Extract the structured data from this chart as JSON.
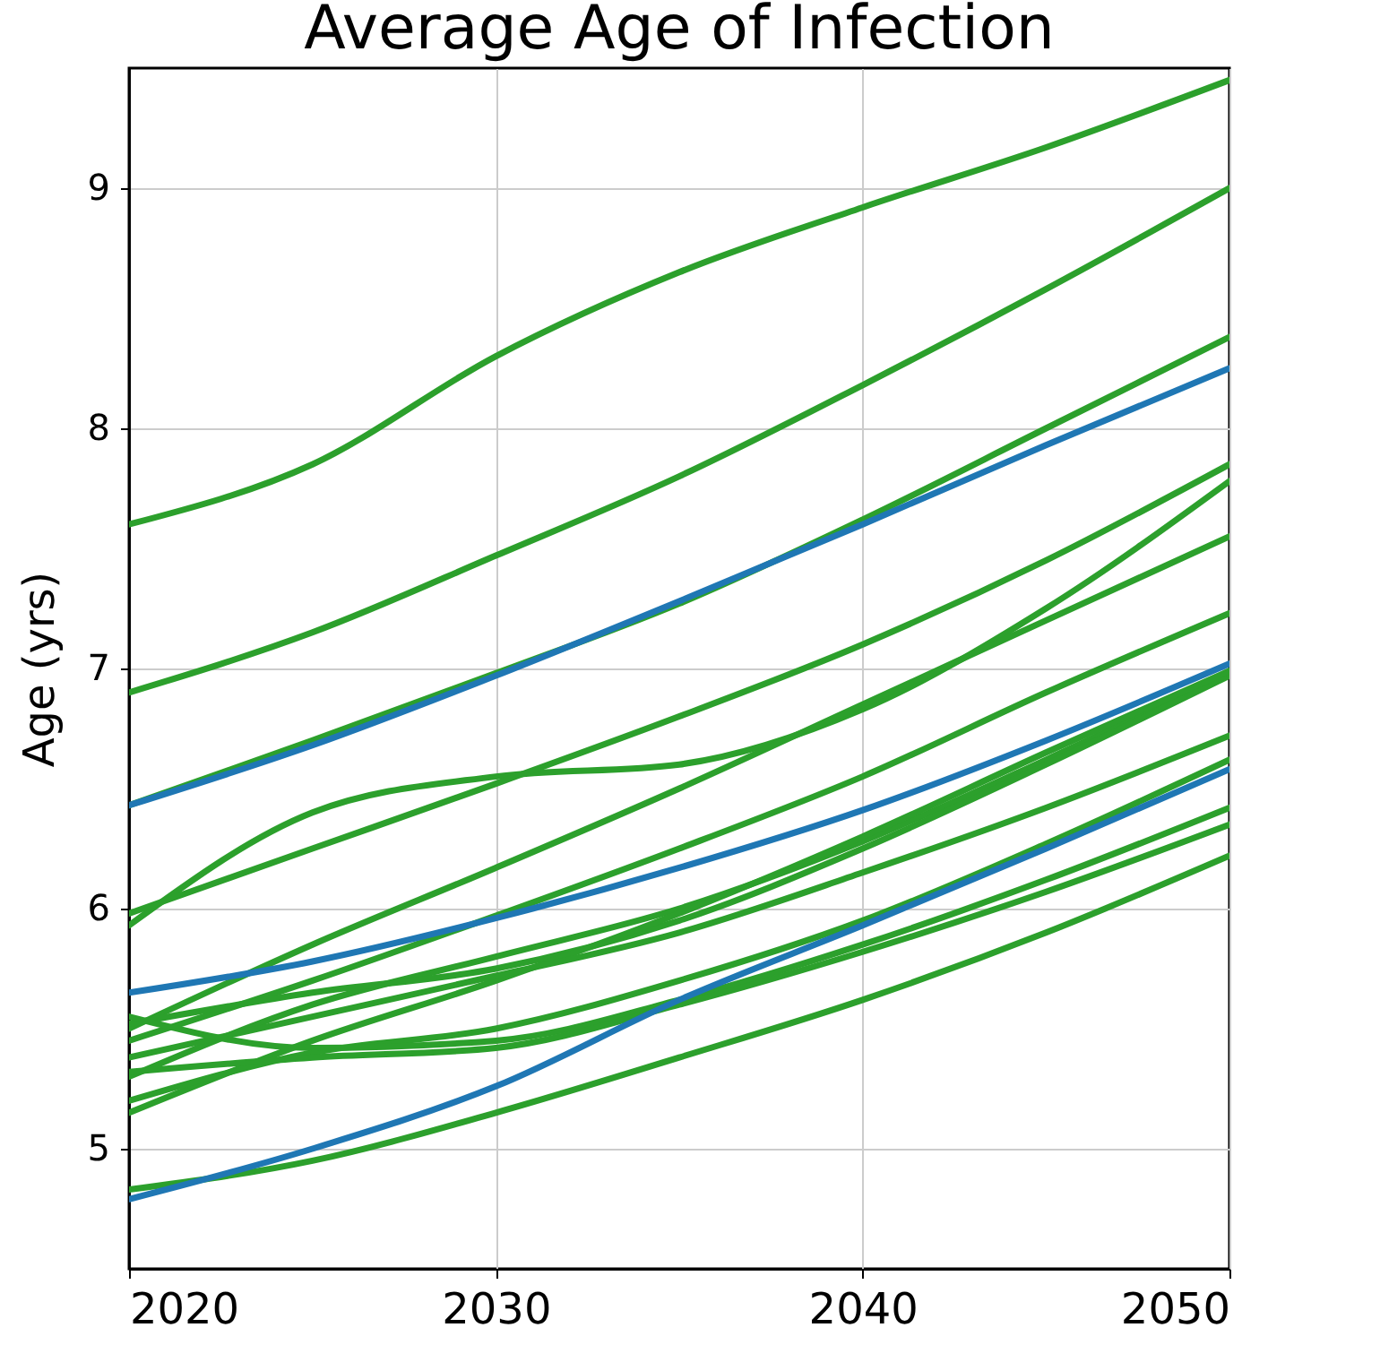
{
  "chart_data": {
    "type": "line",
    "title": "Average Age of Infection",
    "ylabel": "Age (yrs)",
    "x": [
      2020,
      2025,
      2030,
      2035,
      2040,
      2045,
      2050
    ],
    "xlim": [
      2020,
      2050
    ],
    "xticks": [
      2020,
      2030,
      2040,
      2050
    ],
    "ylim": [
      4.5,
      9.5
    ],
    "yticks": [
      5,
      6,
      7,
      8,
      9
    ],
    "grid": true,
    "line_style": "solid",
    "series": [
      {
        "color": "#2ca02c",
        "values": [
          7.6,
          7.85,
          8.3,
          8.65,
          8.92,
          9.17,
          9.45
        ]
      },
      {
        "color": "#2ca02c",
        "values": [
          6.9,
          7.15,
          7.47,
          7.8,
          8.18,
          8.58,
          9.0
        ]
      },
      {
        "color": "#2ca02c",
        "values": [
          6.43,
          6.7,
          6.98,
          7.27,
          7.62,
          8.0,
          8.38
        ]
      },
      {
        "color": "#2ca02c",
        "values": [
          5.93,
          6.4,
          6.55,
          6.6,
          6.83,
          7.25,
          7.78
        ]
      },
      {
        "color": "#2ca02c",
        "values": [
          5.98,
          6.25,
          6.52,
          6.8,
          7.1,
          7.45,
          7.85
        ]
      },
      {
        "color": "#2ca02c",
        "values": [
          5.5,
          5.85,
          6.17,
          6.5,
          6.85,
          7.2,
          7.55
        ]
      },
      {
        "color": "#2ca02c",
        "values": [
          5.45,
          5.7,
          5.97,
          6.25,
          6.55,
          6.9,
          7.23
        ]
      },
      {
        "color": "#2ca02c",
        "values": [
          5.3,
          5.6,
          5.8,
          6.0,
          6.28,
          6.62,
          6.98
        ]
      },
      {
        "color": "#2ca02c",
        "values": [
          5.52,
          5.65,
          5.75,
          5.95,
          6.25,
          6.6,
          6.97
        ]
      },
      {
        "color": "#2ca02c",
        "values": [
          5.15,
          5.45,
          5.7,
          5.98,
          6.3,
          6.65,
          6.99
        ]
      },
      {
        "color": "#2ca02c",
        "values": [
          5.38,
          5.55,
          5.72,
          5.9,
          6.15,
          6.42,
          6.72
        ]
      },
      {
        "color": "#2ca02c",
        "values": [
          5.2,
          5.4,
          5.5,
          5.7,
          5.95,
          6.27,
          6.62
        ]
      },
      {
        "color": "#2ca02c",
        "values": [
          5.55,
          5.42,
          5.45,
          5.62,
          5.85,
          6.12,
          6.42
        ]
      },
      {
        "color": "#2ca02c",
        "values": [
          5.32,
          5.38,
          5.42,
          5.6,
          5.82,
          6.07,
          6.35
        ]
      },
      {
        "color": "#2ca02c",
        "values": [
          4.83,
          4.95,
          5.15,
          5.38,
          5.62,
          5.9,
          6.22
        ]
      },
      {
        "color": "#1f77b4",
        "values": [
          6.43,
          6.68,
          6.97,
          7.28,
          7.6,
          7.93,
          8.25
        ]
      },
      {
        "color": "#1f77b4",
        "values": [
          5.65,
          5.78,
          5.96,
          6.17,
          6.41,
          6.7,
          7.02
        ]
      },
      {
        "color": "#1f77b4",
        "values": [
          4.79,
          5.0,
          5.26,
          5.62,
          5.93,
          6.25,
          6.58
        ]
      }
    ]
  }
}
